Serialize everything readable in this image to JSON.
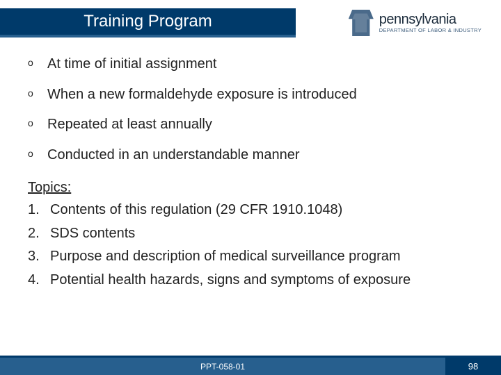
{
  "header": {
    "title": "Training Program",
    "logo_state": "pennsylvania",
    "logo_dept": "DEPARTMENT OF LABOR & INDUSTRY"
  },
  "bullets": [
    "At time of initial assignment",
    "When a new formaldehyde exposure is introduced",
    "Repeated at least annually",
    "Conducted in an understandable manner"
  ],
  "topics_heading": "Topics:",
  "topics": [
    "Contents of this regulation (29 CFR 1910.1048)",
    "SDS contents",
    "Purpose and description of medical surveillance program",
    "Potential health hazards, signs and symptoms of exposure"
  ],
  "footer": {
    "code": "PPT-058-01",
    "page": "98"
  },
  "colors": {
    "title_bg": "#003a6a",
    "accent": "#275f8e",
    "text": "#222222",
    "white": "#ffffff"
  }
}
